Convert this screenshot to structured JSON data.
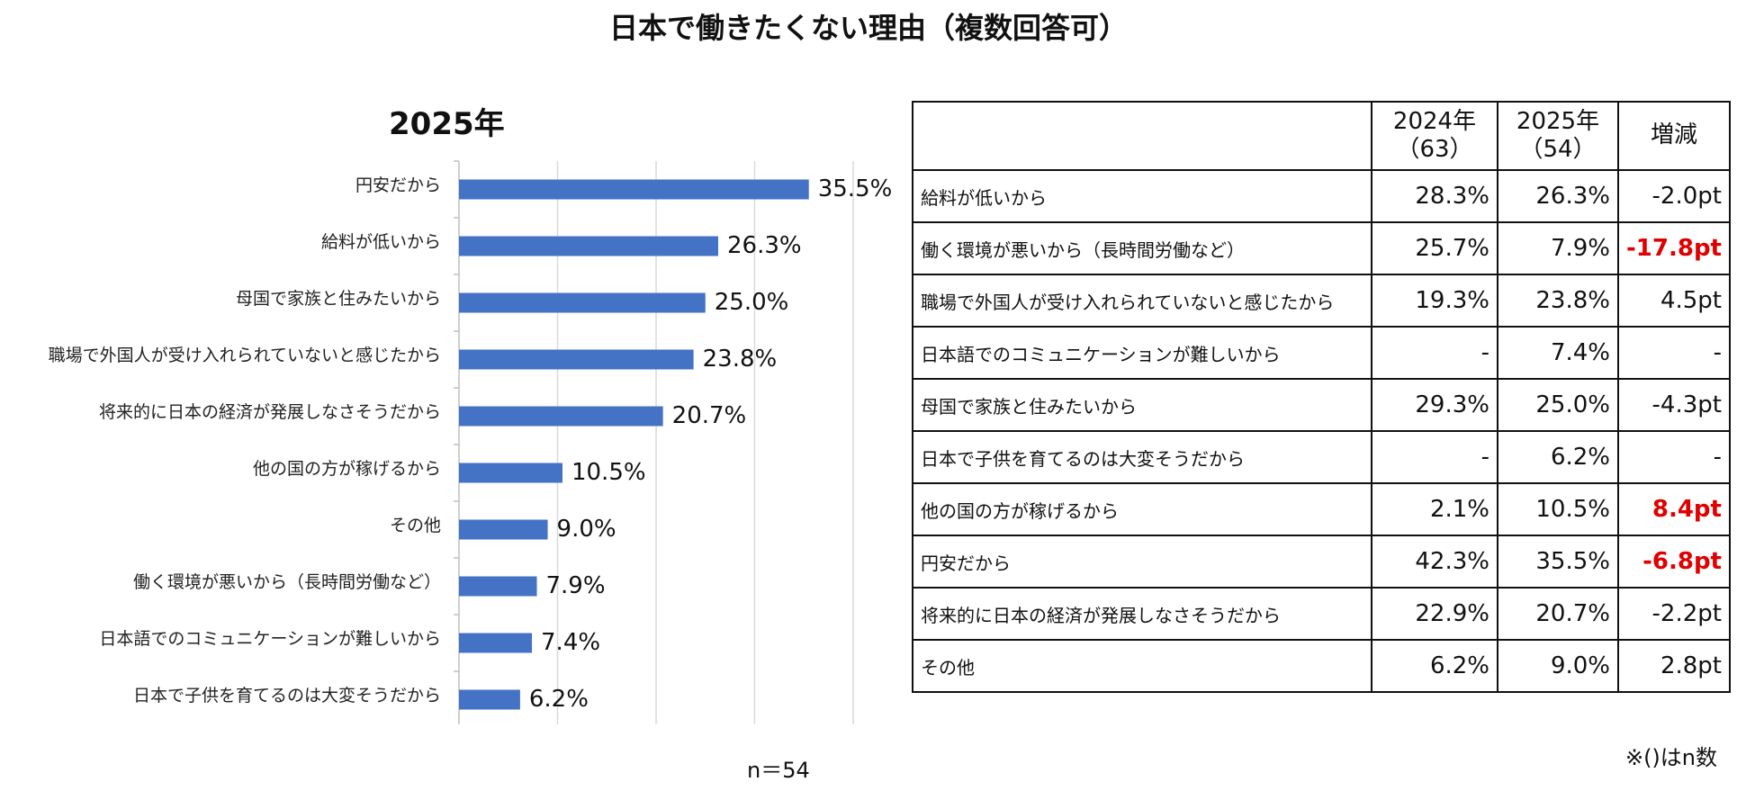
{
  "title": "日本で働きたくない理由（複数回答可）",
  "chart_data": {
    "type": "bar",
    "orientation": "horizontal",
    "title": "2025年",
    "categories": [
      "円安だから",
      "給料が低いから",
      "母国で家族と住みたいから",
      "職場で外国人が受け入れられていないと感じたから",
      "将来的に日本の経済が発展しなさそうだから",
      "他の国の方が稼げるから",
      "その他",
      "働く環境が悪いから（長時間労働など）",
      "日本語でのコミュニケーションが難しいから",
      "日本で子供を育てるのは大変そうだから"
    ],
    "values": [
      35.5,
      26.3,
      25.0,
      23.8,
      20.7,
      10.5,
      9.0,
      7.9,
      7.4,
      6.2
    ],
    "value_labels": [
      "35.5%",
      "26.3%",
      "25.0%",
      "23.8%",
      "20.7%",
      "10.5%",
      "9.0%",
      "7.9%",
      "7.4%",
      "6.2%"
    ],
    "xlim": [
      0,
      40
    ],
    "grid": true,
    "bar_color": "#4472C4",
    "note": "n＝54"
  },
  "table": {
    "headers": [
      "",
      "2024年\n（63）",
      "2025年\n（54）",
      "増減"
    ],
    "rows": [
      {
        "label": "給料が低いから",
        "y2024": "28.3%",
        "y2025": "26.3%",
        "diff": "-2.0pt",
        "highlight": false
      },
      {
        "label": "働く環境が悪いから（長時間労働など）",
        "y2024": "25.7%",
        "y2025": "7.9%",
        "diff": "-17.8pt",
        "highlight": true
      },
      {
        "label": "職場で外国人が受け入れられていないと感じたから",
        "y2024": "19.3%",
        "y2025": "23.8%",
        "diff": "4.5pt",
        "highlight": false
      },
      {
        "label": "日本語でのコミュニケーションが難しいから",
        "y2024": "-",
        "y2025": "7.4%",
        "diff": "-",
        "highlight": false
      },
      {
        "label": "母国で家族と住みたいから",
        "y2024": "29.3%",
        "y2025": "25.0%",
        "diff": "-4.3pt",
        "highlight": false
      },
      {
        "label": "日本で子供を育てるのは大変そうだから",
        "y2024": "-",
        "y2025": "6.2%",
        "diff": "-",
        "highlight": false
      },
      {
        "label": "他の国の方が稼げるから",
        "y2024": "2.1%",
        "y2025": "10.5%",
        "diff": "8.4pt",
        "highlight": true
      },
      {
        "label": "円安だから",
        "y2024": "42.3%",
        "y2025": "35.5%",
        "diff": "-6.8pt",
        "highlight": true
      },
      {
        "label": "将来的に日本の経済が発展しなさそうだから",
        "y2024": "22.9%",
        "y2025": "20.7%",
        "diff": "-2.2pt",
        "highlight": false
      },
      {
        "label": "その他",
        "y2024": "6.2%",
        "y2025": "9.0%",
        "diff": "2.8pt",
        "highlight": false
      }
    ],
    "note": "※()はn数",
    "highlight_color": "#E00000"
  }
}
